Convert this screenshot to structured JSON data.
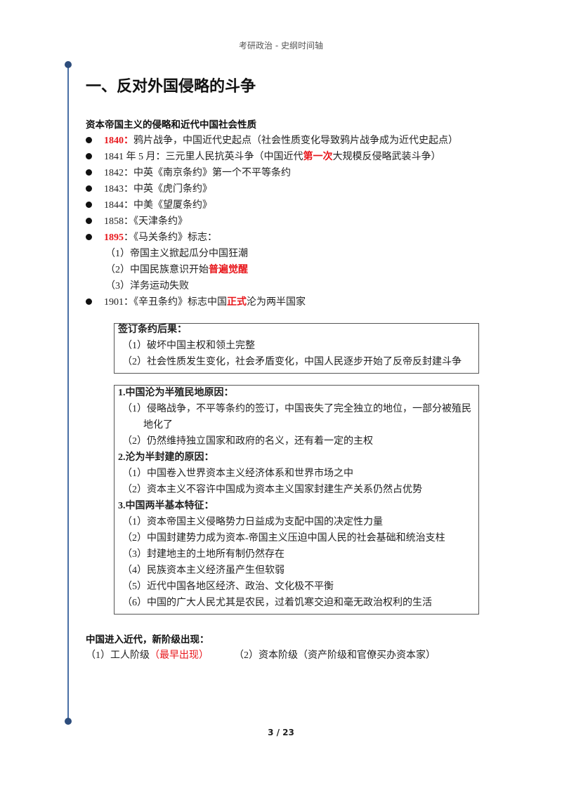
{
  "header": "考研政治 - 史纲时间轴",
  "title": "一、反对外国侵略的斗争",
  "section1": {
    "heading": "资本帝国主义的侵略和近代中国社会性质",
    "bullets": [
      {
        "pre": "1840：",
        "pre_red": true,
        "text": "鸦片战争，中国近代史起点（社会性质变化导致鸦片战争成为近代史起点）"
      },
      {
        "pre": "1841 年 5 月：三元里人民抗英斗争（中国近代",
        "hl": "第一次",
        "post": "大规模反侵略武装斗争）"
      },
      {
        "text": "1842：中英《南京条约》第一个不平等条约"
      },
      {
        "text": "1843：中英《虎门条约》"
      },
      {
        "text": "1844：中美《望厦条约》"
      },
      {
        "text": "1858：《天津条约》"
      },
      {
        "pre": "1895",
        "post": "：《马关条约》标志："
      },
      {
        "pre": "1901：《辛丑条约》标志中国",
        "hl": "正式",
        "post": "沦为两半国家"
      }
    ],
    "sub_1895": [
      {
        "text": "（1）帝国主义掀起瓜分中国狂潮"
      },
      {
        "text": "（2）中国民族意识开始",
        "hl": "普遍觉醒"
      },
      {
        "text": "（3）洋务运动失败"
      }
    ]
  },
  "box1": {
    "heading": "签订条约后果：",
    "items": [
      "（1）破坏中国主权和领土完整",
      "（2）社会性质发生变化，社会矛盾变化，中国人民逐步开始了反帝反封建斗争"
    ]
  },
  "box2": {
    "h1": "1.中国沦为半殖民地原因：",
    "g1": [
      "（1）侵略战争，不平等条约的签订，中国丧失了完全独立的地位，一部分被殖民",
      "地化了",
      "（2）仍然维持独立国家和政府的名义，还有着一定的主权"
    ],
    "h2": "2.沦为半封建的原因：",
    "g2": [
      "（1）中国卷入世界资本主义经济体系和世界市场之中",
      "（2）资本主义不容许中国成为资本主义国家封建生产关系仍然占优势"
    ],
    "h3": "3.中国两半基本特征：",
    "g3": [
      "（1）资本帝国主义侵略势力日益成为支配中国的决定性力量",
      "（2）中国封建势力成为资本-帝国主义压迫中国人民的社会基础和统治支柱",
      "（3）封建地主的土地所有制仍然存在",
      "（4）民族资本主义经济虽产生但软弱",
      "（5）近代中国各地区经济、政治、文化极不平衡",
      "（6）中国的广大人民尤其是农民，过着饥寒交迫和毫无政治权利的生活"
    ]
  },
  "section2": {
    "heading": "中国进入近代，新阶级出现：",
    "item1": "（1）工人阶级",
    "item1_hl": "（最早出现）",
    "item2": "（2）资本阶级（资产阶级和官僚买办资本家）"
  },
  "page_number": "3 / 23",
  "colors": {
    "highlight": "#e8161b",
    "timeline": "#4a6fa5"
  }
}
